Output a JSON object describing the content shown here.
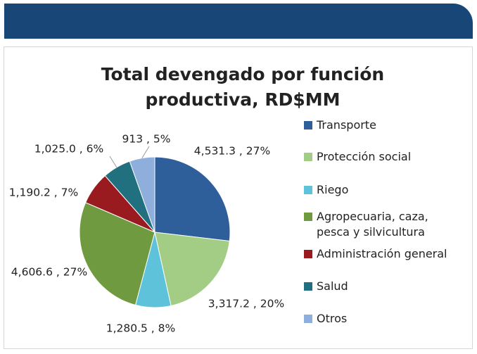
{
  "chart_data": {
    "type": "pie",
    "title": "Total devengado por función productiva, RD$MM",
    "categories": [
      "Transporte",
      "Protección social",
      "Riego",
      "Agropecuaria, caza, pesca y silvicultura",
      "Administración general",
      "Salud",
      "Otros"
    ],
    "values": [
      4531.3,
      3317.2,
      1280.5,
      4606.6,
      1190.2,
      1025.0,
      913
    ],
    "value_labels": [
      "4,531.3 , 27%",
      "3,317.2 , 20%",
      "1,280.5 , 8%",
      "4,606.6 , 27%",
      "1,190.2 , 7%",
      "1,025.0 , 6%",
      "913 , 5%"
    ],
    "colors": [
      "#2e5f9a",
      "#a3cd84",
      "#5ec3da",
      "#6f9a3f",
      "#9a1b1f",
      "#21707f",
      "#8eaedb"
    ],
    "legend": "right"
  }
}
